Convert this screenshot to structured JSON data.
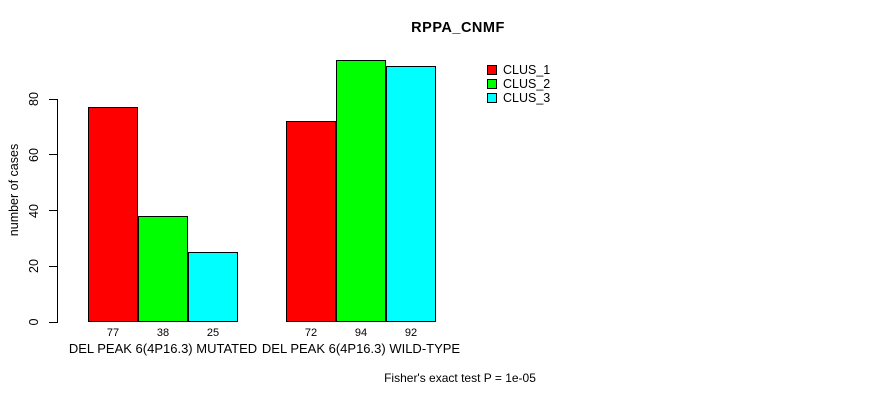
{
  "chart_data": {
    "type": "bar",
    "title": "RPPA_CNMF",
    "ylabel": "number of cases",
    "xlabel": "",
    "categories": [
      "DEL PEAK 6(4P16.3) MUTATED",
      "DEL PEAK 6(4P16.3) WILD-TYPE"
    ],
    "series": [
      {
        "name": "CLUS_1",
        "color": "#ff0000",
        "values": [
          77,
          72
        ]
      },
      {
        "name": "CLUS_2",
        "color": "#00ff00",
        "values": [
          38,
          94
        ]
      },
      {
        "name": "CLUS_3",
        "color": "#00ffff",
        "values": [
          25,
          92
        ]
      }
    ],
    "value_labels": [
      [
        77,
        38,
        25
      ],
      [
        72,
        94,
        92
      ]
    ],
    "yticks": [
      0,
      20,
      40,
      60,
      80
    ],
    "ylim": [
      0,
      80
    ],
    "grid": false,
    "legend_position": "top-right",
    "bar_border_color": "#000000",
    "footnote": "Fisher's exact test P = 1e-05"
  }
}
